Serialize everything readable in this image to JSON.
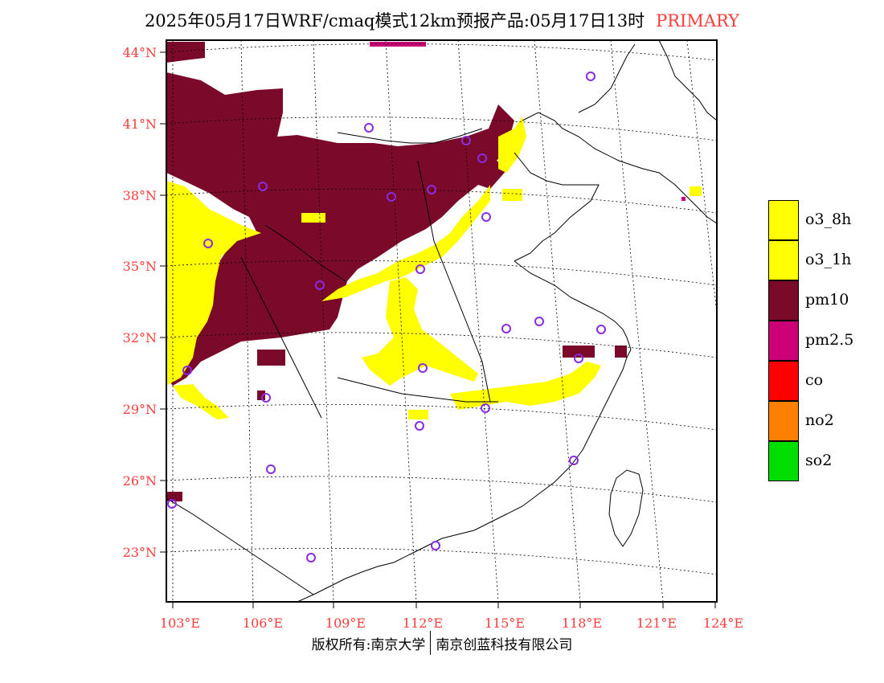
{
  "title": {
    "text": "2025年05月17日WRF/cmaq模式12km预报产品:05月17日13时",
    "tag": "PRIMARY"
  },
  "map": {
    "lat_labels": [
      "44°N",
      "41°N",
      "38°N",
      "35°N",
      "32°N",
      "29°N",
      "26°N",
      "23°N"
    ],
    "lon_labels": [
      "103°E",
      "106°E",
      "109°E",
      "112°E",
      "115°E",
      "118°E",
      "121°E",
      "124°E"
    ],
    "colors": {
      "pm10": "#7b0a2a",
      "o3": "#ffff00",
      "pm25": "#cc0077",
      "station": "#8a2be2",
      "border": "#000000"
    }
  },
  "legend": [
    {
      "label": "o3_8h",
      "color": "#ffff00"
    },
    {
      "label": "o3_1h",
      "color": "#ffff00"
    },
    {
      "label": "pm10",
      "color": "#7b0a2a"
    },
    {
      "label": "pm2.5",
      "color": "#cc0077"
    },
    {
      "label": "co",
      "color": "#ff0000"
    },
    {
      "label": "no2",
      "color": "#ff8000"
    },
    {
      "label": "so2",
      "color": "#00dd00"
    }
  ],
  "footer": {
    "left": "版权所有:南京大学",
    "right": "南京创蓝科技有限公司"
  }
}
